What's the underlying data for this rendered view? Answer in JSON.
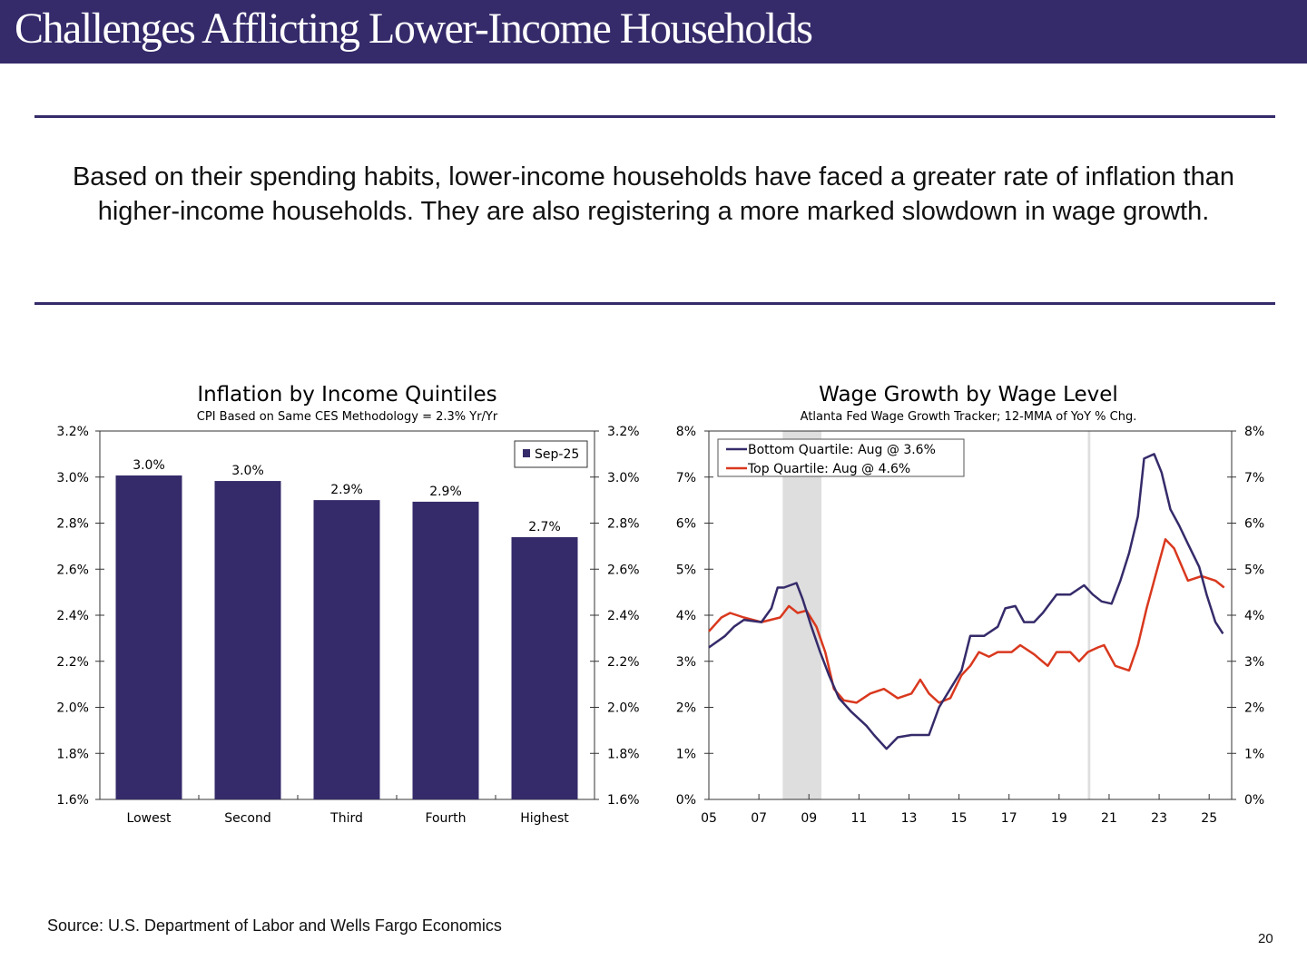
{
  "header": {
    "title": "Challenges Afflicting Lower-Income Households"
  },
  "summary": "Based on their spending habits, lower-income households have faced a greater rate of inflation than higher-income households. They are also registering a more marked slowdown in wage growth.",
  "source": "Source: U.S. Department of Labor and Wells Fargo Economics",
  "page_number": "20",
  "colors": {
    "brand": "#352b6a",
    "bottom_quartile": "#352b6a",
    "top_quartile": "#d9381e",
    "recession_shade": "#dedede"
  },
  "chart_data": [
    {
      "type": "bar",
      "title": "Inflation by Income Quintiles",
      "subtitle": "CPI Based on Same CES Methodology = 2.3% Yr/Yr",
      "categories": [
        "Lowest",
        "Second",
        "Third",
        "Fourth",
        "Highest"
      ],
      "series": [
        {
          "name": "Sep-25",
          "values": [
            3.007,
            2.983,
            2.9,
            2.893,
            2.739
          ]
        }
      ],
      "data_labels": [
        "3.0%",
        "3.0%",
        "2.9%",
        "2.9%",
        "2.7%"
      ],
      "ylim": [
        1.6,
        3.2
      ],
      "yticks": [
        "1.6%",
        "1.8%",
        "2.0%",
        "2.2%",
        "2.4%",
        "2.6%",
        "2.8%",
        "3.0%",
        "3.2%"
      ],
      "y_axes": "left-and-right",
      "legend": "top-right",
      "grid": false
    },
    {
      "type": "line",
      "title": "Wage Growth by Wage Level",
      "subtitle": "Atlanta Fed Wage Growth Tracker; 12-MMA of YoY % Chg.",
      "xlim": [
        2005,
        2025.9
      ],
      "xticks": [
        2005,
        2007,
        2009,
        2011,
        2013,
        2015,
        2017,
        2019,
        2021,
        2023,
        2025
      ],
      "xtick_labels": [
        "05",
        "07",
        "09",
        "11",
        "13",
        "15",
        "17",
        "19",
        "21",
        "23",
        "25"
      ],
      "ylim": [
        0,
        8
      ],
      "yticks": [
        "0%",
        "1%",
        "2%",
        "3%",
        "4%",
        "5%",
        "6%",
        "7%",
        "8%"
      ],
      "y_axes": "left-and-right",
      "legend": "top-left",
      "grid": false,
      "shaded_periods": [
        [
          2007.95,
          2009.5
        ],
        [
          2020.15,
          2020.25
        ]
      ],
      "series": [
        {
          "name": "Bottom Quartile: Aug @ 3.6%",
          "x": [
            2005.0,
            2005.65,
            2006.0,
            2006.4,
            2007.1,
            2007.5,
            2007.75,
            2008.0,
            2008.5,
            2008.75,
            2009.1,
            2009.45,
            2009.8,
            2010.2,
            2010.7,
            2011.3,
            2011.6,
            2012.1,
            2012.55,
            2013.1,
            2013.8,
            2014.2,
            2014.65,
            2015.1,
            2015.45,
            2016.0,
            2016.55,
            2016.85,
            2017.25,
            2017.6,
            2018.0,
            2018.35,
            2018.9,
            2019.45,
            2020.0,
            2020.35,
            2020.7,
            2021.1,
            2021.45,
            2021.8,
            2022.15,
            2022.4,
            2022.8,
            2023.1,
            2023.45,
            2023.8,
            2024.15,
            2024.6,
            2024.9,
            2025.25,
            2025.55
          ],
          "y": [
            3.3,
            3.55,
            3.75,
            3.9,
            3.85,
            4.15,
            4.6,
            4.6,
            4.7,
            4.35,
            3.75,
            3.2,
            2.7,
            2.2,
            1.9,
            1.6,
            1.4,
            1.1,
            1.35,
            1.4,
            1.4,
            2.0,
            2.4,
            2.8,
            3.55,
            3.55,
            3.75,
            4.15,
            4.2,
            3.85,
            3.85,
            4.05,
            4.45,
            4.45,
            4.65,
            4.45,
            4.3,
            4.25,
            4.75,
            5.35,
            6.15,
            7.4,
            7.5,
            7.1,
            6.3,
            5.95,
            5.55,
            5.05,
            4.45,
            3.85,
            3.6
          ]
        },
        {
          "name": "Top Quartile: Aug @ 4.6%",
          "x": [
            2005.0,
            2005.5,
            2005.85,
            2006.4,
            2007.1,
            2007.85,
            2008.2,
            2008.55,
            2008.9,
            2009.3,
            2009.65,
            2010.0,
            2010.4,
            2010.9,
            2011.45,
            2012.0,
            2012.55,
            2013.1,
            2013.45,
            2013.8,
            2014.2,
            2014.65,
            2015.1,
            2015.45,
            2015.8,
            2016.2,
            2016.55,
            2017.1,
            2017.45,
            2018.0,
            2018.55,
            2018.9,
            2019.45,
            2019.8,
            2020.15,
            2020.55,
            2020.8,
            2021.25,
            2021.8,
            2022.15,
            2022.5,
            2022.9,
            2023.25,
            2023.6,
            2024.15,
            2024.7,
            2025.25,
            2025.6
          ],
          "y": [
            3.65,
            3.95,
            4.05,
            3.95,
            3.85,
            3.95,
            4.2,
            4.05,
            4.1,
            3.75,
            3.2,
            2.4,
            2.15,
            2.1,
            2.3,
            2.4,
            2.2,
            2.3,
            2.6,
            2.3,
            2.1,
            2.2,
            2.7,
            2.9,
            3.2,
            3.1,
            3.2,
            3.2,
            3.35,
            3.15,
            2.9,
            3.2,
            3.2,
            3.0,
            3.2,
            3.3,
            3.35,
            2.9,
            2.8,
            3.35,
            4.15,
            4.95,
            5.65,
            5.45,
            4.75,
            4.85,
            4.75,
            4.6
          ]
        }
      ]
    }
  ]
}
